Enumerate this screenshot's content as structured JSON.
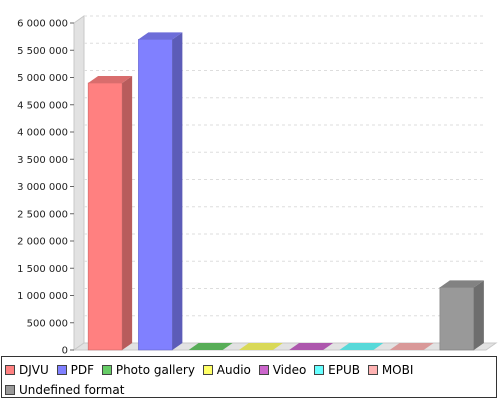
{
  "chart_data": {
    "type": "bar",
    "categories": [
      "DJVU",
      "PDF",
      "Photo gallery",
      "Audio",
      "Video",
      "EPUB",
      "MOBI",
      "Undefined format"
    ],
    "values": [
      4900000,
      5700000,
      0,
      0,
      0,
      0,
      0,
      1150000
    ],
    "colors": [
      "#ff8080",
      "#8080ff",
      "#66cc66",
      "#ffff66",
      "#cc66cc",
      "#66ffff",
      "#ffb3b3",
      "#999999"
    ],
    "ylim": [
      0,
      6000000
    ],
    "ytick_step": 500000,
    "yticks": [
      "0",
      "500 000",
      "1 000 000",
      "1 500 000",
      "2 000 000",
      "2 500 000",
      "3 000 000",
      "3 500 000",
      "4 000 000",
      "4 500 000",
      "5 000 000",
      "5 500 000",
      "6 000 000"
    ],
    "grid": true,
    "legend_position": "bottom",
    "style": "3d"
  }
}
